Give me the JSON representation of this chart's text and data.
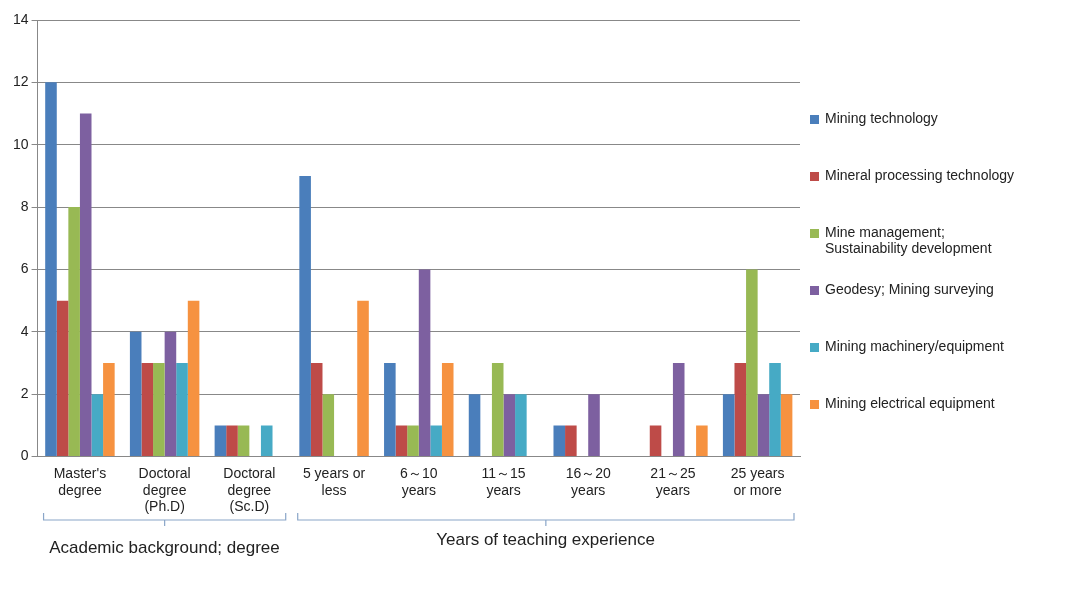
{
  "chart_data": {
    "type": "bar",
    "categories": [
      "Master's\ndegree",
      "Doctoral\ndegree\n(Ph.D)",
      "Doctoral\ndegree\n(Sc.D)",
      "5 years or\nless",
      "6～10\nyears",
      "11～15\nyears",
      "16～20\nyears",
      "21～25\nyears",
      "25 years\nor more"
    ],
    "series": [
      {
        "name": "Mining technology",
        "color": "#4a7ebb",
        "values": [
          12,
          4,
          1,
          9,
          3,
          2,
          1,
          0,
          2
        ]
      },
      {
        "name": "Mineral processing technology",
        "color": "#be4b48",
        "values": [
          5,
          3,
          1,
          3,
          1,
          0,
          1,
          1,
          3
        ]
      },
      {
        "name": "Mine management;\nSustainability development",
        "color": "#98b954",
        "values": [
          8,
          3,
          1,
          2,
          1,
          3,
          0,
          0,
          6
        ]
      },
      {
        "name": "Geodesy; Mining surveying",
        "color": "#7d60a0",
        "values": [
          11,
          4,
          0,
          0,
          6,
          2,
          2,
          3,
          2
        ]
      },
      {
        "name": "Mining machinery/equipment",
        "color": "#46aac5",
        "values": [
          2,
          3,
          1,
          0,
          1,
          2,
          0,
          0,
          3
        ]
      },
      {
        "name": "Mining electrical equipment",
        "color": "#f69240",
        "values": [
          3,
          5,
          0,
          5,
          3,
          0,
          0,
          1,
          2
        ]
      }
    ],
    "ylim": [
      0,
      14
    ],
    "yticks": [
      0,
      2,
      4,
      6,
      8,
      10,
      12,
      14
    ],
    "grid": "y",
    "legend": "right",
    "annotations": [
      "Academic background; degree",
      "Years of teaching experience"
    ]
  }
}
